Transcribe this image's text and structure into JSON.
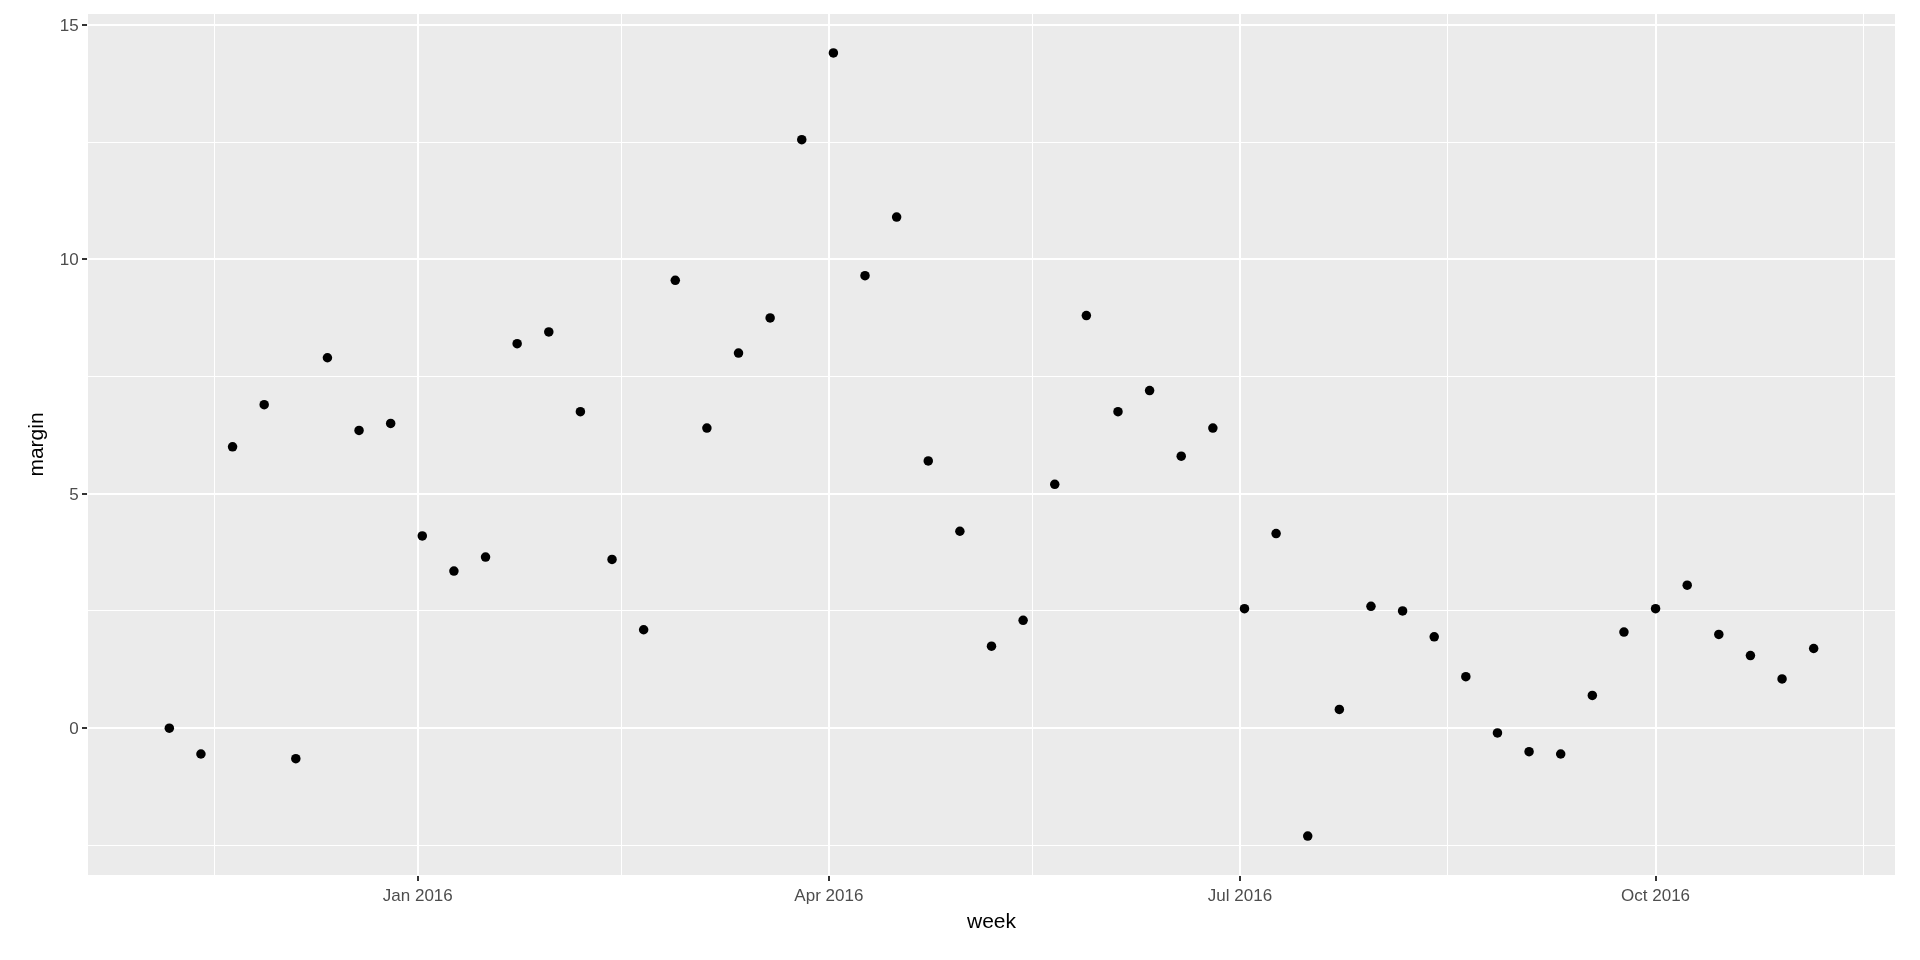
{
  "chart_data": {
    "type": "scatter",
    "xlabel": "week",
    "ylabel": "margin",
    "x": [
      "2015-11-07",
      "2015-11-14",
      "2015-11-21",
      "2015-11-28",
      "2015-12-05",
      "2015-12-12",
      "2015-12-19",
      "2015-12-26",
      "2016-01-02",
      "2016-01-09",
      "2016-01-16",
      "2016-01-23",
      "2016-01-30",
      "2016-02-06",
      "2016-02-13",
      "2016-02-20",
      "2016-02-27",
      "2016-03-05",
      "2016-03-12",
      "2016-03-19",
      "2016-03-26",
      "2016-04-02",
      "2016-04-09",
      "2016-04-16",
      "2016-04-23",
      "2016-04-30",
      "2016-05-07",
      "2016-05-14",
      "2016-05-21",
      "2016-05-28",
      "2016-06-04",
      "2016-06-11",
      "2016-06-18",
      "2016-06-25",
      "2016-07-02",
      "2016-07-09",
      "2016-07-16",
      "2016-07-23",
      "2016-07-30",
      "2016-08-06",
      "2016-08-13",
      "2016-08-20",
      "2016-08-27",
      "2016-09-03",
      "2016-09-10",
      "2016-09-17",
      "2016-09-24",
      "2016-10-01",
      "2016-10-08",
      "2016-10-15",
      "2016-10-22",
      "2016-10-29",
      "2016-11-05"
    ],
    "series": [
      {
        "color": "#000000",
        "values": [
          0.0,
          -0.55,
          6.0,
          6.9,
          -0.65,
          7.9,
          6.35,
          6.5,
          4.1,
          3.35,
          3.65,
          8.2,
          8.45,
          6.75,
          3.6,
          2.1,
          9.55,
          6.4,
          8.0,
          8.75,
          12.55,
          14.4,
          9.65,
          10.9,
          5.7,
          4.2,
          1.75,
          2.3,
          5.2,
          8.8,
          6.75,
          7.2,
          5.8,
          6.4,
          2.55,
          4.15,
          -2.3,
          0.4,
          2.6,
          2.5,
          1.95,
          1.1,
          -0.1,
          -0.5,
          -0.55,
          0.7,
          2.05,
          2.55,
          3.05,
          2.0,
          1.55,
          1.05,
          1.7
        ]
      }
    ],
    "xlim": [
      "2015-10-20",
      "2016-11-23"
    ],
    "xticks": [
      {
        "value": "2016-01-01",
        "label": "Jan 2016"
      },
      {
        "value": "2016-04-01",
        "label": "Apr 2016"
      },
      {
        "value": "2016-07-01",
        "label": "Jul 2016"
      },
      {
        "value": "2016-10-01",
        "label": "Oct 2016"
      }
    ],
    "ylim": [
      -3.13,
      15.23
    ],
    "yticks": [
      0,
      5,
      10,
      15
    ],
    "grid": true,
    "marker": "circle"
  }
}
